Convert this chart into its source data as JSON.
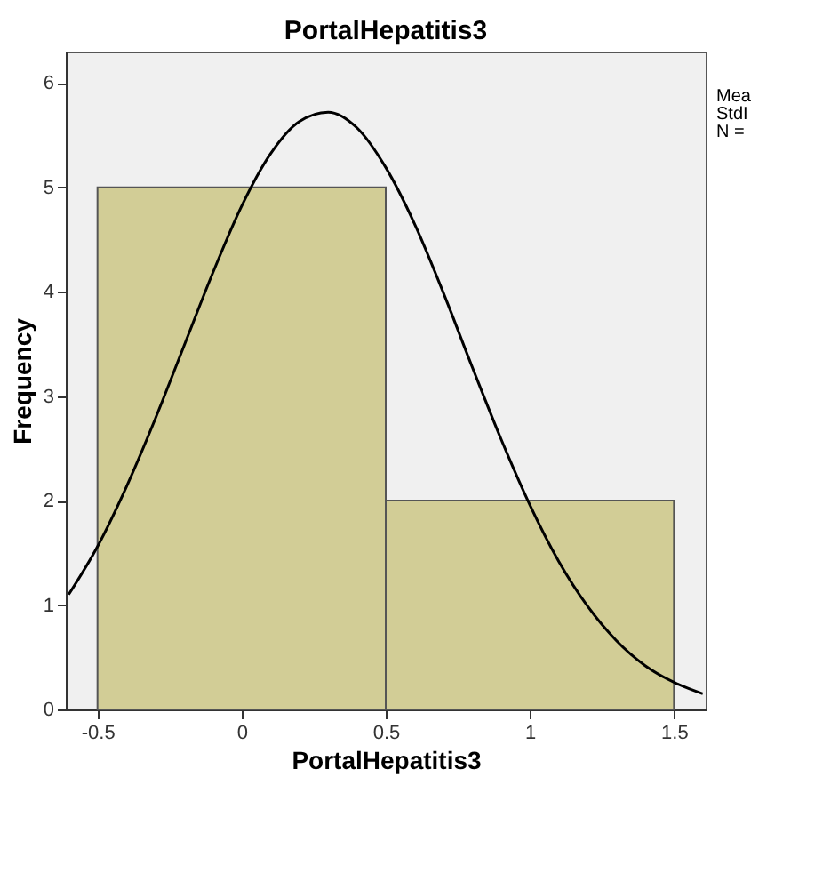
{
  "chart_data": {
    "type": "histogram",
    "title": "PortalHepatitis3",
    "xlabel": "PortalHepatitis3",
    "ylabel": "Frequency",
    "xlim": [
      -0.61,
      1.61
    ],
    "xticks": [
      -0.5,
      0,
      0.5,
      1,
      1.5
    ],
    "ylim": [
      0,
      6.3
    ],
    "yticks": [
      0,
      1,
      2,
      3,
      4,
      5,
      6
    ],
    "grid": false,
    "annotations": [
      "Mea",
      "StdI",
      "N ="
    ],
    "series": [
      {
        "color": "#d2cd96",
        "bins": [
          -0.5,
          0.5,
          1.5
        ],
        "values": [
          5,
          2
        ]
      },
      {
        "type": "line",
        "color": "#000000",
        "x": [
          -0.6,
          -0.5,
          -0.4,
          -0.3,
          -0.2,
          -0.1,
          0,
          0.1,
          0.2,
          0.3,
          0.4,
          0.5,
          0.6,
          0.7,
          0.8,
          0.9,
          1.0,
          1.1,
          1.2,
          1.3,
          1.4,
          1.5,
          1.6
        ],
        "values": [
          1.1,
          1.56,
          2.13,
          2.78,
          3.48,
          4.18,
          4.82,
          5.32,
          5.63,
          5.72,
          5.57,
          5.19,
          4.65,
          3.99,
          3.28,
          2.59,
          1.96,
          1.42,
          0.99,
          0.66,
          0.42,
          0.26,
          0.15
        ]
      }
    ]
  }
}
